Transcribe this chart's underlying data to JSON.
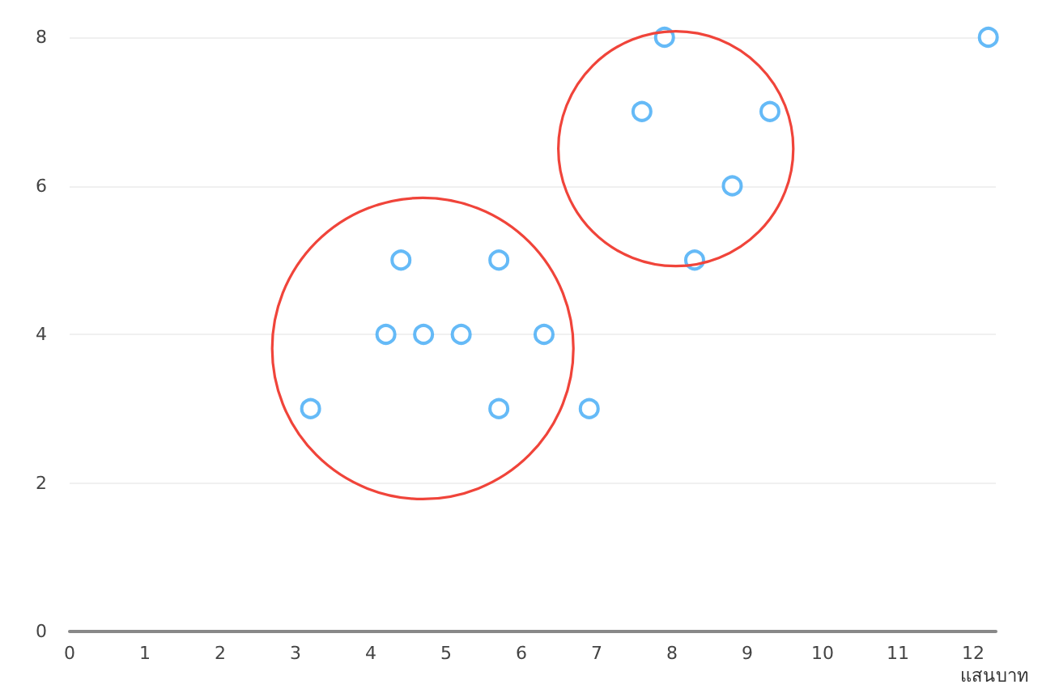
{
  "chart_data": {
    "type": "scatter",
    "xlabel": "แสนบาท",
    "x": [
      3.2,
      4.2,
      4.4,
      4.7,
      5.2,
      5.7,
      5.7,
      6.3,
      6.9,
      7.6,
      7.9,
      8.3,
      8.8,
      9.3,
      12.2
    ],
    "values": [
      3,
      4,
      5,
      4,
      4,
      5,
      3,
      4,
      3,
      7,
      8,
      5,
      6,
      7,
      8
    ],
    "color": "#3fa9f5",
    "marker": "circle",
    "xlim": [
      0,
      12.3
    ],
    "xticks": [
      0,
      1,
      2,
      3,
      4,
      5,
      6,
      7,
      8,
      9,
      10,
      11,
      12
    ],
    "ylim": [
      0,
      8
    ],
    "yticks": [
      0,
      2,
      4,
      6,
      8
    ],
    "grid": "y"
  }
}
